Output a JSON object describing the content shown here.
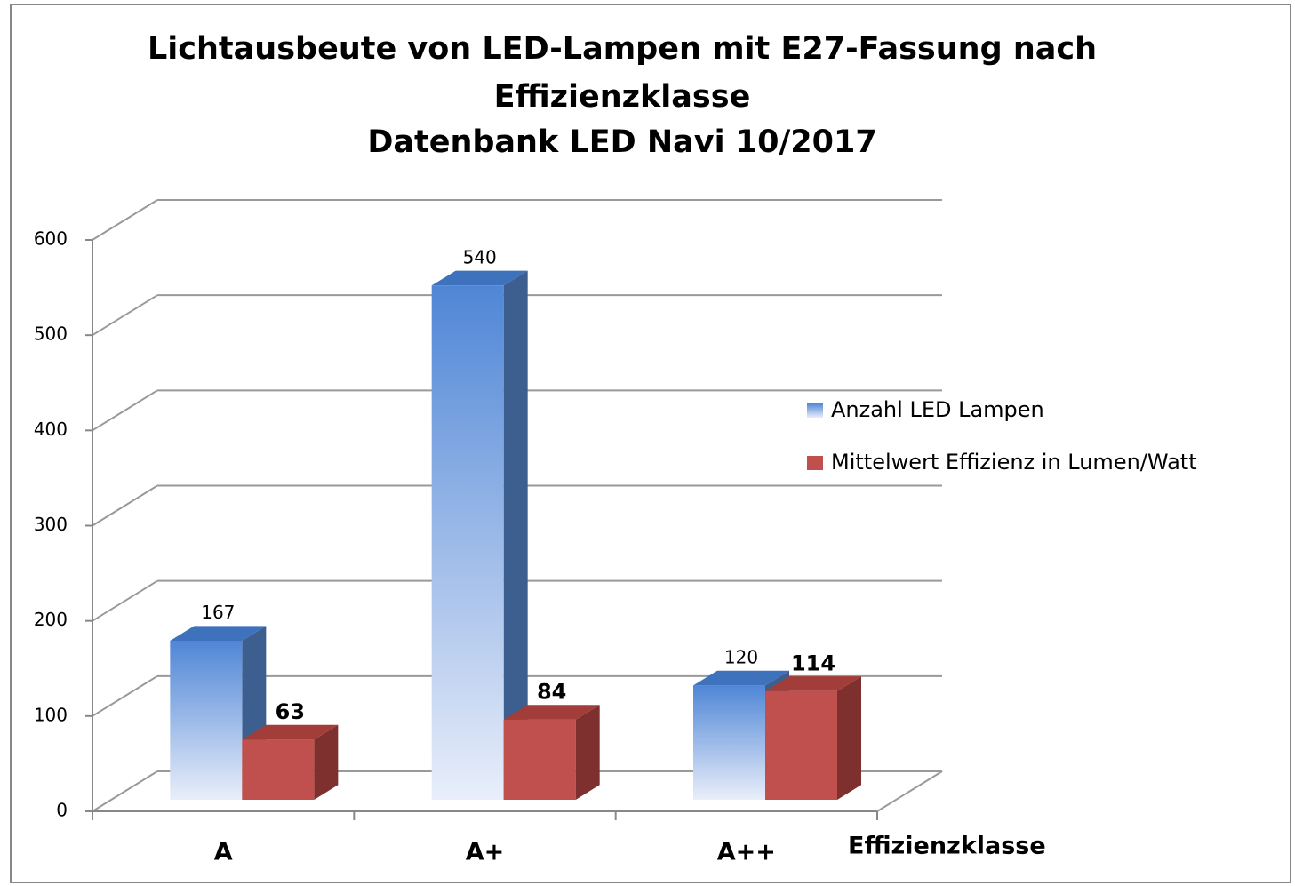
{
  "chart_data": {
    "type": "bar3d",
    "title": "Lichtausbeute von LED-Lampen mit E27-Fassung nach Effizienzklasse",
    "subtitle": "Datenbank LED Navi 10/2017",
    "x_label": "Effizienzklasse",
    "categories": [
      "A",
      "A+",
      "A++"
    ],
    "series": [
      {
        "name": "Anzahl LED Lampen",
        "color": "#4f86d6",
        "values": [
          167,
          540,
          120
        ]
      },
      {
        "name": "Mittelwert Effizienz in Lumen/Watt",
        "color": "#c0504d",
        "values": [
          63,
          84,
          114
        ]
      }
    ],
    "ylim": [
      0,
      600
    ],
    "yticks": [
      0,
      100,
      200,
      300,
      400,
      500,
      600
    ],
    "grid": true,
    "legend": "right"
  }
}
